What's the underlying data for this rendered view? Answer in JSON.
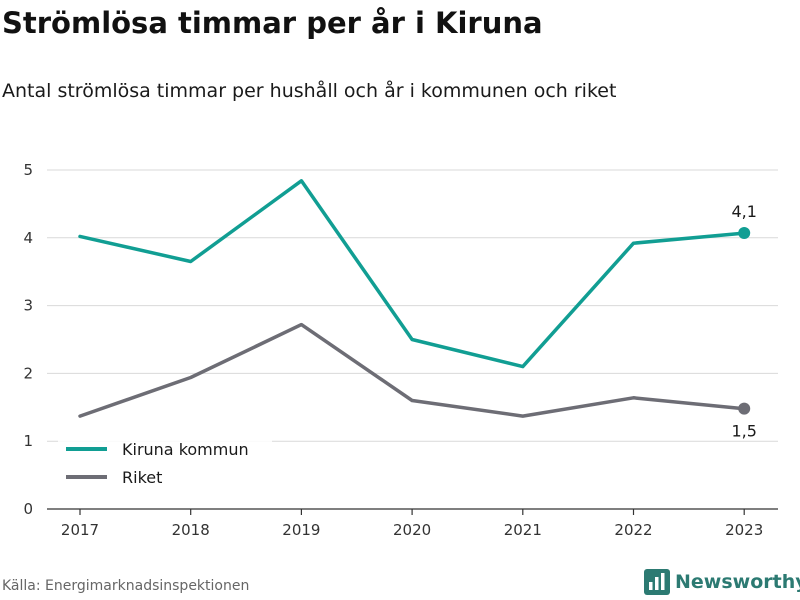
{
  "title": "Strömlösa timmar per år i Kiruna",
  "subtitle": "Antal strömlösa timmar per hushåll och år i kommunen och riket",
  "source": "Källa: Energimarknadsinspektionen",
  "brand": "Newsworthy",
  "colors": {
    "kiruna": "#119e93",
    "riket": "#6d6d75",
    "grid": "#d9d9d9",
    "axis": "#333333",
    "brand": "#2c7a72"
  },
  "chart_data": {
    "type": "line",
    "x": [
      "2017",
      "2018",
      "2019",
      "2020",
      "2021",
      "2022",
      "2023"
    ],
    "ylim": [
      0,
      5
    ],
    "yticks": [
      "0",
      "1",
      "2",
      "3",
      "4",
      "5"
    ],
    "grid": true,
    "legend_position": "bottom-left",
    "series": [
      {
        "name": "Kiruna kommun",
        "values": [
          4.02,
          3.65,
          4.84,
          2.5,
          2.1,
          3.92,
          4.07
        ],
        "end_label": "4,1",
        "color": "#119e93"
      },
      {
        "name": "Riket",
        "values": [
          1.37,
          1.94,
          2.72,
          1.6,
          1.37,
          1.64,
          1.48
        ],
        "end_label": "1,5",
        "color": "#6d6d75"
      }
    ]
  }
}
